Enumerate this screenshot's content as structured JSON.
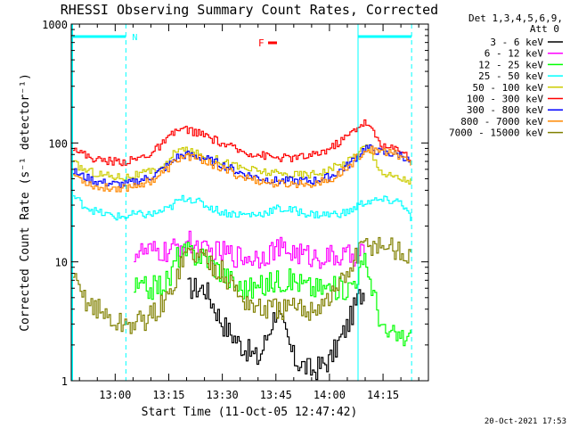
{
  "chart_data": {
    "type": "line",
    "title": "RHESSI Observing Summary Count Rates, Corrected",
    "xlabel": "Start Time (11-Oct-05 12:47:42)",
    "ylabel": "Corrected Count Rate (s⁻¹ detector⁻¹)",
    "y_scale": "log",
    "ylim": [
      1,
      1000
    ],
    "xlim": [
      "12:47:42",
      "14:27:42"
    ],
    "x_ticks": [
      "13:00",
      "13:15",
      "13:30",
      "13:45",
      "14:00",
      "14:15"
    ],
    "y_ticks": [
      "1",
      "10",
      "100",
      "1000"
    ],
    "legend_header": [
      "Det 1,3,4,5,6,9,",
      "Att 0"
    ],
    "legend_position": "right",
    "flags": [
      {
        "label": "N",
        "color": "#00ffff"
      },
      {
        "label": "F",
        "color": "#ff0000"
      }
    ],
    "footer_timestamp": "20-Oct-2021 17:53",
    "x": [
      "12:48",
      "12:51",
      "12:55",
      "13:00",
      "13:03",
      "13:05",
      "13:10",
      "13:15",
      "13:17",
      "13:20",
      "13:25",
      "13:30",
      "13:35",
      "13:40",
      "13:45",
      "13:50",
      "13:55",
      "14:00",
      "14:05",
      "14:08",
      "14:10",
      "14:15",
      "14:20",
      "14:23"
    ],
    "series": [
      {
        "name": "3 - 6 keV",
        "color": "#000000",
        "values": [
          null,
          null,
          null,
          null,
          null,
          null,
          null,
          null,
          null,
          6,
          6,
          3,
          2,
          1.5,
          4,
          1.5,
          1.2,
          1.5,
          3,
          5,
          6,
          null,
          null,
          null
        ]
      },
      {
        "name": "6 - 12 keV",
        "color": "#ff00ff",
        "values": [
          null,
          null,
          null,
          null,
          null,
          12,
          12,
          12,
          13,
          15,
          12,
          12,
          11,
          11,
          13,
          12,
          11,
          11,
          11,
          12,
          12,
          null,
          null,
          null
        ]
      },
      {
        "name": "12 - 25 keV",
        "color": "#00ff00",
        "values": [
          null,
          null,
          null,
          null,
          null,
          6,
          6,
          7,
          11,
          12,
          11,
          8,
          6,
          6,
          7,
          7,
          6,
          6,
          6,
          8,
          10,
          2.5,
          2.3,
          2.3
        ]
      },
      {
        "name": "25 - 50 keV",
        "color": "#00ffff",
        "values": [
          36,
          30,
          26,
          24,
          24,
          25,
          25,
          28,
          32,
          35,
          30,
          26,
          25,
          25,
          28,
          27,
          25,
          25,
          26,
          30,
          32,
          33,
          32,
          22
        ]
      },
      {
        "name": "50 - 100 keV",
        "color": "#cccc00",
        "values": [
          68,
          60,
          55,
          52,
          52,
          53,
          57,
          68,
          90,
          85,
          78,
          70,
          62,
          58,
          55,
          54,
          55,
          60,
          70,
          85,
          95,
          55,
          50,
          48
        ]
      },
      {
        "name": "100 - 300 keV",
        "color": "#ff0000",
        "values": [
          95,
          80,
          72,
          70,
          70,
          72,
          82,
          110,
          128,
          130,
          115,
          98,
          85,
          80,
          75,
          75,
          78,
          90,
          115,
          140,
          150,
          92,
          88,
          70
        ]
      },
      {
        "name": "300 - 800 keV",
        "color": "#0000ff",
        "values": [
          58,
          52,
          47,
          45,
          45,
          47,
          52,
          66,
          76,
          80,
          74,
          65,
          56,
          51,
          48,
          48,
          48,
          52,
          65,
          80,
          92,
          82,
          80,
          66
        ]
      },
      {
        "name": "800 - 7000 keV",
        "color": "#ff8800",
        "values": [
          55,
          48,
          42,
          42,
          42,
          44,
          48,
          62,
          72,
          78,
          71,
          60,
          52,
          48,
          45,
          45,
          46,
          48,
          62,
          78,
          88,
          85,
          78,
          65
        ]
      },
      {
        "name": "7000 - 15000 keV",
        "color": "#808000",
        "values": [
          7,
          5,
          4,
          3,
          3,
          3,
          3.5,
          5,
          8,
          12,
          11,
          8,
          5,
          4,
          4,
          4,
          4,
          5,
          8,
          12,
          14,
          14,
          12,
          10
        ]
      }
    ]
  }
}
